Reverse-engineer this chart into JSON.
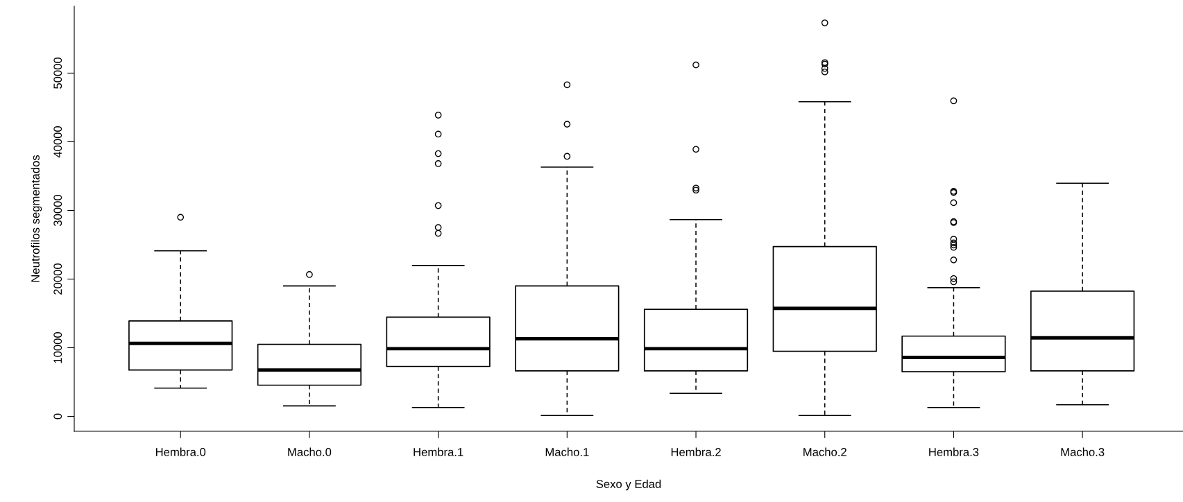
{
  "chart_data": {
    "type": "box",
    "xlabel": "Sexo y Edad",
    "ylabel": "Neutrofilos segmentados",
    "categories": [
      "Hembra.0",
      "Macho.0",
      "Hembra.1",
      "Macho.1",
      "Hembra.2",
      "Macho.2",
      "Hembra.3",
      "Macho.3"
    ],
    "boxes": [
      {
        "low": 4120,
        "q1": 6760,
        "median": 10630,
        "q3": 13900,
        "high": 24110,
        "outliers": [
          29000
        ]
      },
      {
        "low": 1530,
        "q1": 4550,
        "median": 6760,
        "q3": 10500,
        "high": 19000,
        "outliers": [
          20660
        ]
      },
      {
        "low": 1280,
        "q1": 7270,
        "median": 9860,
        "q3": 14460,
        "high": 21980,
        "outliers": [
          43880,
          41110,
          38270,
          36820,
          30700,
          27510,
          26660
        ]
      },
      {
        "low": 130,
        "q1": 6630,
        "median": 11310,
        "q3": 19000,
        "high": 36310,
        "outliers": [
          37880,
          42560,
          48300
        ]
      },
      {
        "low": 3360,
        "q1": 6630,
        "median": 9860,
        "q3": 15600,
        "high": 28660,
        "outliers": [
          32950,
          33250,
          38900,
          51190
        ]
      },
      {
        "low": 130,
        "q1": 9480,
        "median": 15730,
        "q3": 24740,
        "high": 45830,
        "outliers": [
          57310,
          51530,
          51320,
          50680,
          50170
        ]
      },
      {
        "low": 1280,
        "q1": 6500,
        "median": 8590,
        "q3": 11690,
        "high": 18750,
        "outliers": [
          45960,
          32610,
          32780,
          31120,
          28360,
          28230,
          25810,
          25260,
          24960,
          24620,
          22790,
          20070,
          19600
        ]
      },
      {
        "low": 1700,
        "q1": 6630,
        "median": 11440,
        "q3": 18240,
        "high": 33970
      }
    ],
    "ylim": [
      -2170,
      59740
    ],
    "yticks": [
      0,
      10000,
      20000,
      30000,
      40000,
      50000
    ],
    "grid": false
  }
}
